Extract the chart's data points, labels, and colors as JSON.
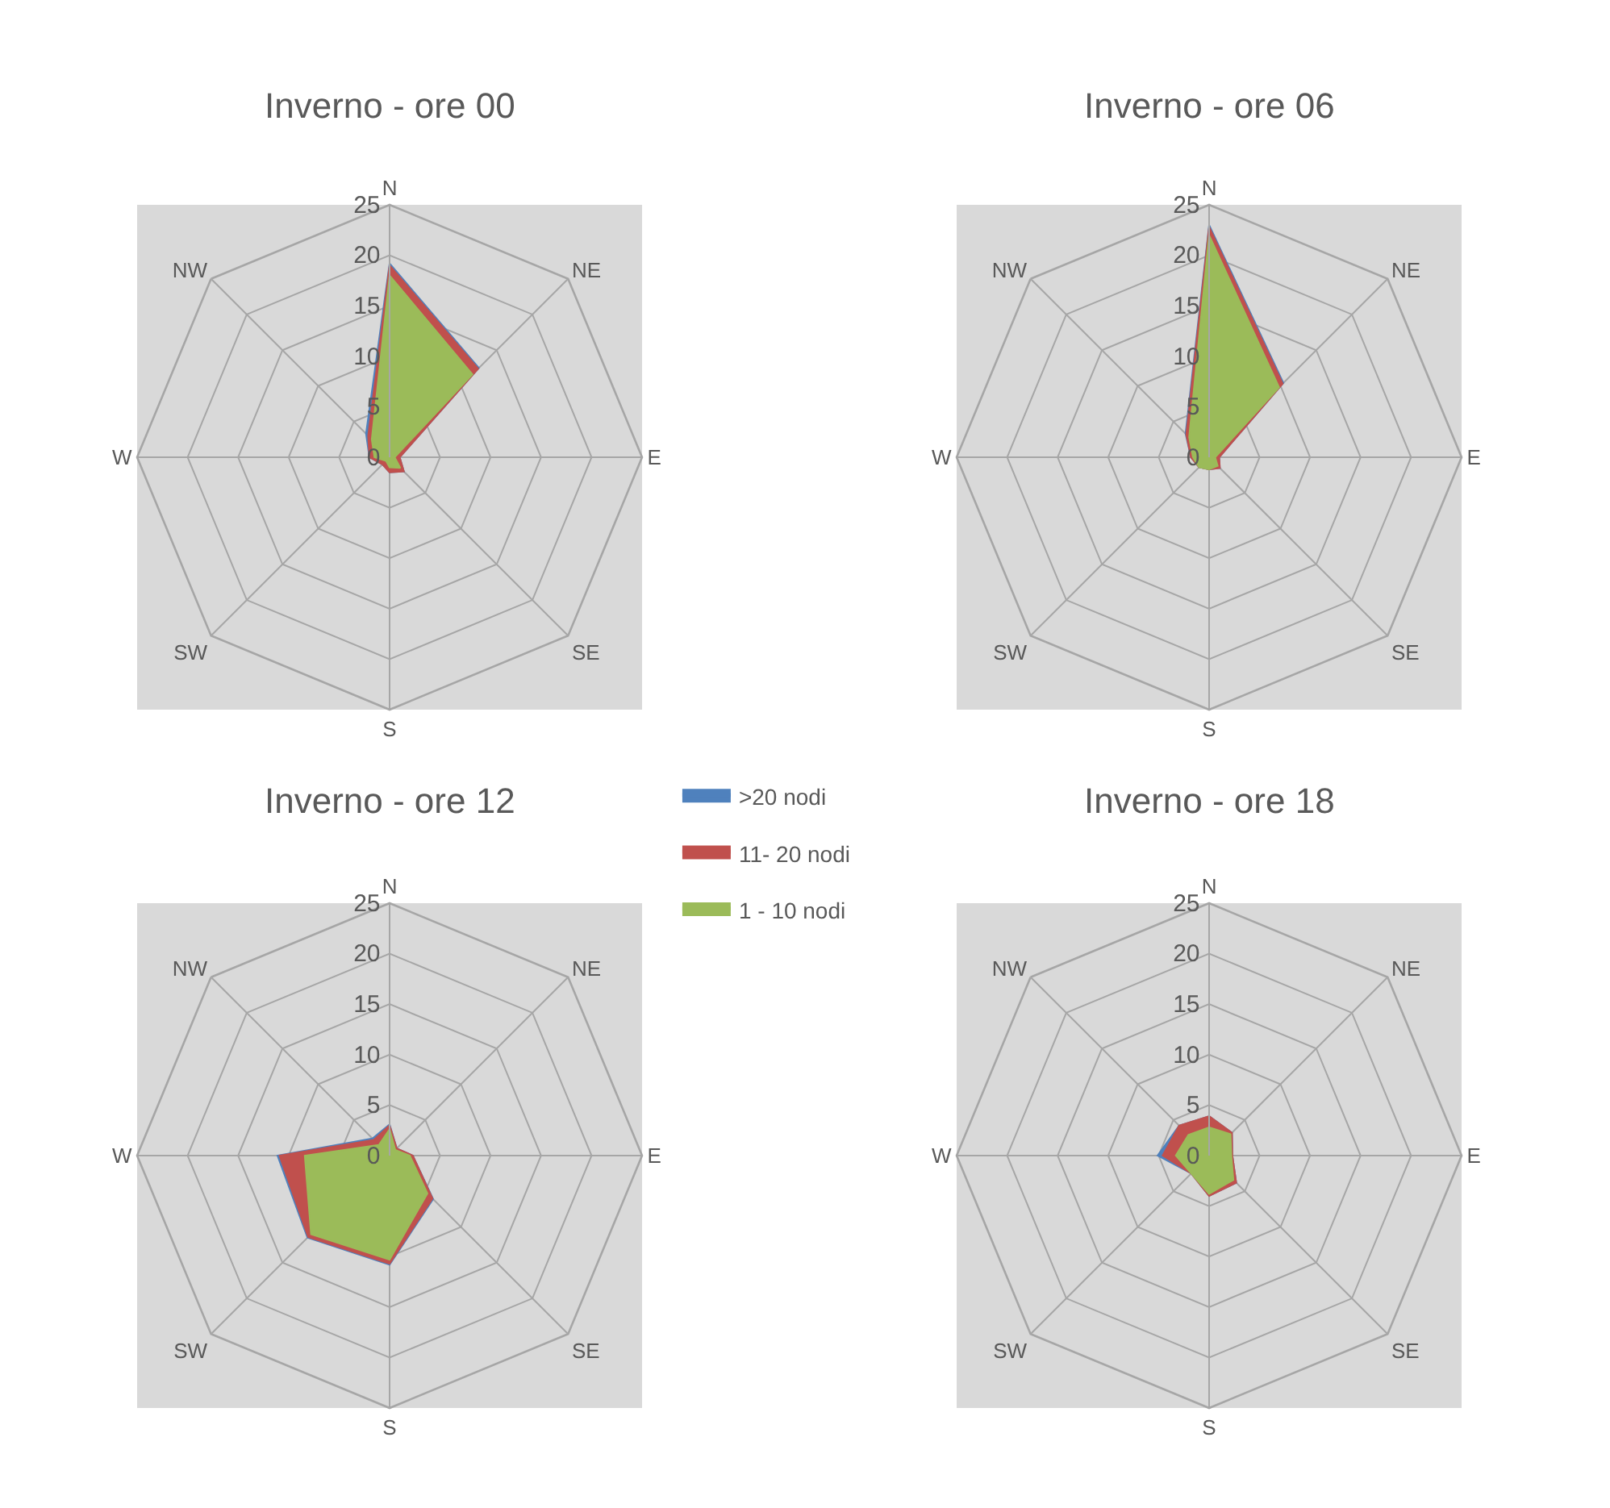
{
  "chart_data": [
    {
      "type": "radar",
      "title": "Inverno - ore 00",
      "categories": [
        "N",
        "NE",
        "E",
        "SE",
        "S",
        "SW",
        "W",
        "NW"
      ],
      "ylim": [
        0,
        25
      ],
      "yticks": [
        0,
        5,
        10,
        15,
        20,
        25
      ],
      "grid": true,
      "legend": "bottom right",
      "series": [
        {
          "name": ">20 nodi",
          "color": "#4f81bd",
          "values": [
            19.2,
            12.5,
            1,
            2,
            1.5,
            1,
            2,
            3.3
          ]
        },
        {
          "name": "11- 20 nodi",
          "color": "#c0504d",
          "values": [
            19,
            12.4,
            1,
            2,
            1.5,
            1,
            2,
            3
          ]
        },
        {
          "name": "1 - 10 nodi",
          "color": "#9bbb59",
          "values": [
            18,
            11.6,
            0.5,
            1.5,
            1,
            0.5,
            1.5,
            2.5
          ]
        }
      ]
    },
    {
      "type": "radar",
      "title": "Inverno - ore 06",
      "categories": [
        "N",
        "NE",
        "E",
        "SE",
        "S",
        "SW",
        "W",
        "NW"
      ],
      "ylim": [
        0,
        25
      ],
      "yticks": [
        0,
        5,
        10,
        15,
        20,
        25
      ],
      "grid": true,
      "series": [
        {
          "name": ">20 nodi",
          "color": "#4f81bd",
          "values": [
            23,
            10.4,
            1,
            1.5,
            1.2,
            1.4,
            1.8,
            3.3
          ]
        },
        {
          "name": "11- 20 nodi",
          "color": "#c0504d",
          "values": [
            22.8,
            10.3,
            1,
            1.5,
            1.2,
            1.4,
            1.8,
            3.2
          ]
        },
        {
          "name": "1 - 10 nodi",
          "color": "#9bbb59",
          "values": [
            22,
            9.8,
            0.6,
            1.2,
            1.2,
            1.4,
            1.6,
            2.8
          ]
        }
      ]
    },
    {
      "type": "radar",
      "title": "Inverno - ore 12",
      "categories": [
        "N",
        "NE",
        "E",
        "SE",
        "S",
        "SW",
        "W",
        "NW"
      ],
      "ylim": [
        0,
        25
      ],
      "yticks": [
        0,
        5,
        10,
        15,
        20,
        25
      ],
      "grid": true,
      "series": [
        {
          "name": ">20 nodi",
          "color": "#4f81bd",
          "values": [
            3.1,
            1,
            2.3,
            6.1,
            10.8,
            11.5,
            11.1,
            2.4
          ]
        },
        {
          "name": "11- 20 nodi",
          "color": "#c0504d",
          "values": [
            3,
            1,
            2.3,
            6,
            10.7,
            11.4,
            10.9,
            2.2
          ]
        },
        {
          "name": "1 - 10 nodi",
          "color": "#9bbb59",
          "values": [
            2.6,
            0.8,
            2,
            5.3,
            10.3,
            11,
            8.4,
            1.5
          ]
        }
      ]
    },
    {
      "type": "radar",
      "title": "Inverno - ore 18",
      "categories": [
        "N",
        "NE",
        "E",
        "SE",
        "S",
        "SW",
        "W",
        "NW"
      ],
      "ylim": [
        0,
        25
      ],
      "yticks": [
        0,
        5,
        10,
        15,
        20,
        25
      ],
      "grid": true,
      "series": [
        {
          "name": ">20 nodi",
          "color": "#4f81bd",
          "values": [
            3.9,
            3.2,
            2.3,
            3.8,
            4,
            2.5,
            5.1,
            4.2
          ]
        },
        {
          "name": "11- 20 nodi",
          "color": "#c0504d",
          "values": [
            3.9,
            3.2,
            2.3,
            3.8,
            4,
            2.5,
            4.6,
            4.2
          ]
        },
        {
          "name": "1 - 10 nodi",
          "color": "#9bbb59",
          "values": [
            2.8,
            3,
            2.2,
            3.4,
            3.8,
            2.5,
            3.3,
            2.9
          ]
        }
      ]
    }
  ]
}
